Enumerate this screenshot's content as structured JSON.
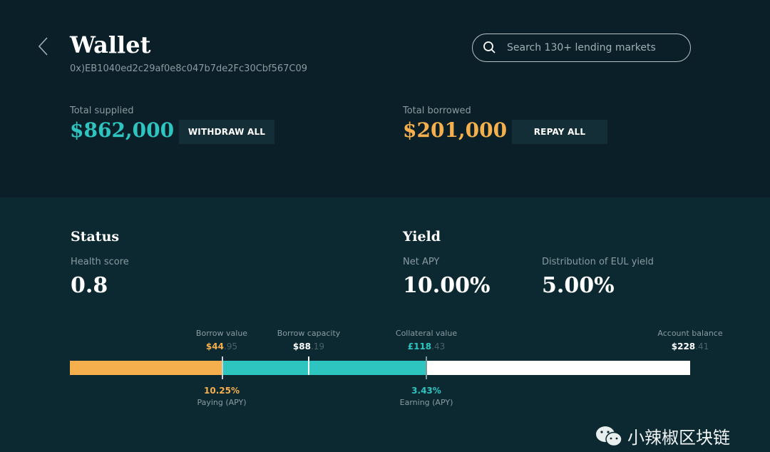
{
  "header": {
    "title": "Wallet",
    "address": "0x)EB1040ed2c29af0e8c047b7de2Fc30Cbf567C09",
    "search_placeholder": "Search 130+ lending markets"
  },
  "supplied": {
    "label": "Total supplied",
    "value": "$862,000",
    "button": "WITHDRAW ALL"
  },
  "borrowed": {
    "label": "Total borrowed",
    "value": "$201,000",
    "button": "REPAY ALL"
  },
  "status": {
    "title": "Status",
    "health_label": "Health score",
    "health_value": "0.8"
  },
  "yield": {
    "title": "Yield",
    "net_apy_label": "Net APY",
    "net_apy_value": "10.00%",
    "eul_label": "Distribution of EUL yield",
    "eul_value": "5.00%"
  },
  "bar": {
    "borrow_value": {
      "label": "Borrow value",
      "whole": "$44",
      "dec": ".95"
    },
    "borrow_capacity": {
      "label": "Borrow capacity",
      "whole": "$88",
      "dec": ".19"
    },
    "collateral_value": {
      "label": "Collateral value",
      "whole": "£118",
      "dec": ".43"
    },
    "account_balance": {
      "label": "Account balance",
      "whole": "$228",
      "dec": ".41"
    },
    "paying": {
      "value": "10.25%",
      "label": "Paying (APY)"
    },
    "earning": {
      "value": "3.43%",
      "label": "Earning (APY)"
    }
  },
  "watermark": "小辣椒区块链",
  "colors": {
    "teal": "#2ec4c0",
    "orange": "#f5b04d"
  }
}
